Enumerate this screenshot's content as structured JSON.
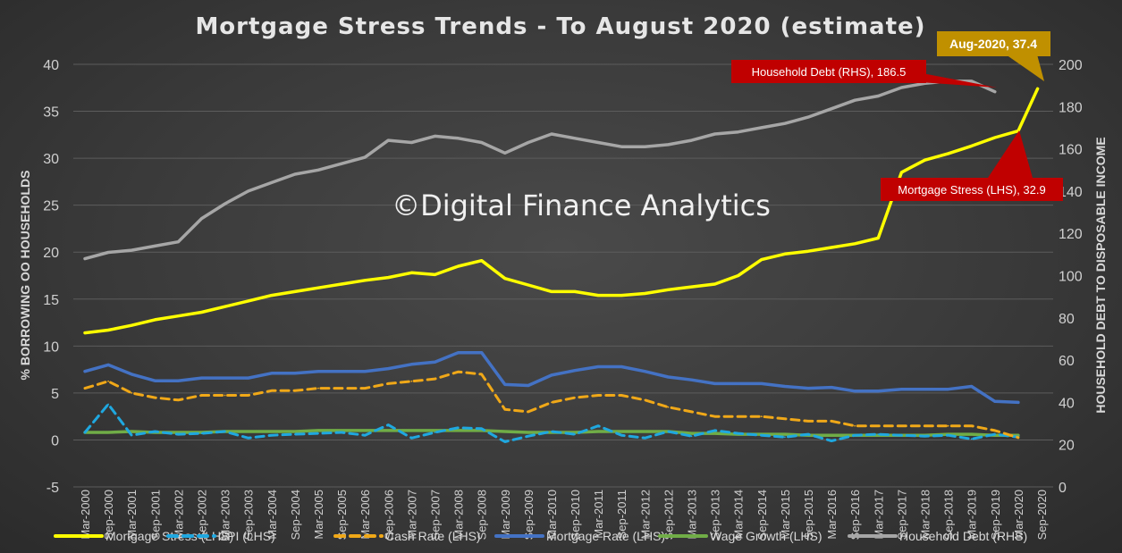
{
  "chart_data": {
    "type": "line",
    "title": "Mortgage Stress Trends - To August 2020 (estimate)",
    "watermark": "©Digital Finance Analytics",
    "ylabel": "% BORROWING OO HOUSEHOLDS",
    "y2label": "HOUSEHOLD DEBT TO DISPOSABLE INCOME",
    "ylim": [
      -5,
      40
    ],
    "y2lim": [
      0,
      200
    ],
    "yticks": [
      "-5",
      "0",
      "5",
      "10",
      "15",
      "20",
      "25",
      "30",
      "35",
      "40"
    ],
    "y2ticks": [
      "0",
      "20",
      "40",
      "60",
      "80",
      "100",
      "120",
      "140",
      "160",
      "180",
      "200"
    ],
    "x_tick_labels": [
      "Mar-2000",
      "Sep-2000",
      "Mar-2001",
      "Sep-2001",
      "Mar-2002",
      "Sep-2002",
      "Mar-2003",
      "Sep-2003",
      "Mar-2004",
      "Sep-2004",
      "Mar-2005",
      "Sep-2005",
      "Mar-2006",
      "Sep-2006",
      "Mar-2007",
      "Sep-2007",
      "Mar-2008",
      "Sep-2008",
      "Mar-2009",
      "Sep-2009",
      "Mar-2010",
      "Sep-2010",
      "Mar-2011",
      "Sep-2011",
      "Mar-2012",
      "Sep-2012",
      "Mar-2013",
      "Sep-2013",
      "Mar-2014",
      "Sep-2014",
      "Mar-2015",
      "Sep-2015",
      "Mar-2016",
      "Sep-2016",
      "Mar-2017",
      "Sep-2017",
      "Mar-2018",
      "Sep-2018",
      "Mar-2019",
      "Sep-2019",
      "Mar-2020",
      "Sep-2020"
    ],
    "grid": true,
    "legend_position": "bottom",
    "series": [
      {
        "name": "Mortgage Stress (LHS)",
        "axis": "left",
        "color": "#ffff00",
        "dash": "solid",
        "x": [
          "Mar-2000",
          "Sep-2000",
          "Mar-2001",
          "Sep-2001",
          "Mar-2002",
          "Sep-2002",
          "Mar-2003",
          "Sep-2003",
          "Mar-2004",
          "Sep-2004",
          "Mar-2005",
          "Sep-2005",
          "Mar-2006",
          "Sep-2006",
          "Mar-2007",
          "Sep-2007",
          "Mar-2008",
          "Sep-2008",
          "Mar-2009",
          "Sep-2009",
          "Mar-2010",
          "Sep-2010",
          "Mar-2011",
          "Sep-2011",
          "Mar-2012",
          "Sep-2012",
          "Mar-2013",
          "Sep-2013",
          "Mar-2014",
          "Sep-2014",
          "Mar-2015",
          "Sep-2015",
          "Mar-2016",
          "Sep-2016",
          "Mar-2017",
          "Sep-2017",
          "Mar-2018",
          "Sep-2018",
          "Mar-2019",
          "Sep-2019",
          "Mar-2020",
          "Aug-2020"
        ],
        "values": [
          11.4,
          11.7,
          12.2,
          12.8,
          13.2,
          13.6,
          14.2,
          14.8,
          15.4,
          15.8,
          16.2,
          16.6,
          17.0,
          17.3,
          17.8,
          17.6,
          18.5,
          19.1,
          17.2,
          16.5,
          15.8,
          15.8,
          15.4,
          15.4,
          15.6,
          16.0,
          16.3,
          16.6,
          17.5,
          19.2,
          19.8,
          20.1,
          20.5,
          20.9,
          21.5,
          28.5,
          29.8,
          30.5,
          31.3,
          32.2,
          32.9,
          37.4
        ]
      },
      {
        "name": "CPI (LHS)",
        "axis": "left",
        "color": "#1fa8e0",
        "dash": "dash",
        "x": [
          "Mar-2000",
          "Sep-2000",
          "Mar-2001",
          "Sep-2001",
          "Mar-2002",
          "Sep-2002",
          "Mar-2003",
          "Sep-2003",
          "Mar-2004",
          "Sep-2004",
          "Mar-2005",
          "Sep-2005",
          "Mar-2006",
          "Sep-2006",
          "Mar-2007",
          "Sep-2007",
          "Mar-2008",
          "Sep-2008",
          "Mar-2009",
          "Sep-2009",
          "Mar-2010",
          "Sep-2010",
          "Mar-2011",
          "Sep-2011",
          "Mar-2012",
          "Sep-2012",
          "Mar-2013",
          "Sep-2013",
          "Mar-2014",
          "Sep-2014",
          "Mar-2015",
          "Sep-2015",
          "Mar-2016",
          "Sep-2016",
          "Mar-2017",
          "Sep-2017",
          "Mar-2018",
          "Sep-2018",
          "Mar-2019",
          "Sep-2019",
          "Mar-2020"
        ],
        "values": [
          0.8,
          3.8,
          0.5,
          0.9,
          0.6,
          0.7,
          0.9,
          0.2,
          0.5,
          0.6,
          0.7,
          0.8,
          0.5,
          1.6,
          0.2,
          0.8,
          1.3,
          1.2,
          -0.2,
          0.4,
          0.9,
          0.6,
          1.5,
          0.5,
          0.2,
          0.9,
          0.4,
          1.0,
          0.7,
          0.5,
          0.3,
          0.6,
          -0.1,
          0.5,
          0.6,
          0.5,
          0.4,
          0.5,
          0.1,
          0.6,
          0.3
        ]
      },
      {
        "name": "Cash Rate (LHS)",
        "axis": "left",
        "color": "#f0a818",
        "dash": "dash",
        "x": [
          "Mar-2000",
          "Sep-2000",
          "Mar-2001",
          "Sep-2001",
          "Mar-2002",
          "Sep-2002",
          "Mar-2003",
          "Sep-2003",
          "Mar-2004",
          "Sep-2004",
          "Mar-2005",
          "Sep-2005",
          "Mar-2006",
          "Sep-2006",
          "Mar-2007",
          "Sep-2007",
          "Mar-2008",
          "Sep-2008",
          "Mar-2009",
          "Sep-2009",
          "Mar-2010",
          "Sep-2010",
          "Mar-2011",
          "Sep-2011",
          "Mar-2012",
          "Sep-2012",
          "Mar-2013",
          "Sep-2013",
          "Mar-2014",
          "Sep-2014",
          "Mar-2015",
          "Sep-2015",
          "Mar-2016",
          "Sep-2016",
          "Mar-2017",
          "Sep-2017",
          "Mar-2018",
          "Sep-2018",
          "Mar-2019",
          "Sep-2019",
          "Mar-2020"
        ],
        "values": [
          5.5,
          6.25,
          5.0,
          4.5,
          4.25,
          4.75,
          4.75,
          4.75,
          5.25,
          5.25,
          5.5,
          5.5,
          5.5,
          6.0,
          6.25,
          6.5,
          7.25,
          7.0,
          3.25,
          3.0,
          4.0,
          4.5,
          4.75,
          4.75,
          4.25,
          3.5,
          3.0,
          2.5,
          2.5,
          2.5,
          2.25,
          2.0,
          2.0,
          1.5,
          1.5,
          1.5,
          1.5,
          1.5,
          1.5,
          1.0,
          0.25
        ]
      },
      {
        "name": "Mortgage Rate (LHS)",
        "axis": "left",
        "color": "#4472c4",
        "dash": "solid",
        "x": [
          "Mar-2000",
          "Sep-2000",
          "Mar-2001",
          "Sep-2001",
          "Mar-2002",
          "Sep-2002",
          "Mar-2003",
          "Sep-2003",
          "Mar-2004",
          "Sep-2004",
          "Mar-2005",
          "Sep-2005",
          "Mar-2006",
          "Sep-2006",
          "Mar-2007",
          "Sep-2007",
          "Mar-2008",
          "Sep-2008",
          "Mar-2009",
          "Sep-2009",
          "Mar-2010",
          "Sep-2010",
          "Mar-2011",
          "Sep-2011",
          "Mar-2012",
          "Sep-2012",
          "Mar-2013",
          "Sep-2013",
          "Mar-2014",
          "Sep-2014",
          "Mar-2015",
          "Sep-2015",
          "Mar-2016",
          "Sep-2016",
          "Mar-2017",
          "Sep-2017",
          "Mar-2018",
          "Sep-2018",
          "Mar-2019",
          "Sep-2019",
          "Mar-2020"
        ],
        "values": [
          7.3,
          8.0,
          7.0,
          6.3,
          6.3,
          6.6,
          6.6,
          6.6,
          7.1,
          7.1,
          7.3,
          7.3,
          7.3,
          7.6,
          8.05,
          8.3,
          9.3,
          9.3,
          5.9,
          5.8,
          6.9,
          7.4,
          7.8,
          7.8,
          7.3,
          6.7,
          6.4,
          6.0,
          6.0,
          6.0,
          5.7,
          5.5,
          5.6,
          5.2,
          5.2,
          5.4,
          5.4,
          5.4,
          5.7,
          4.1,
          4.0
        ]
      },
      {
        "name": "Wage Growth (LHS)",
        "axis": "left",
        "color": "#70ad47",
        "dash": "solid",
        "x": [
          "Mar-2000",
          "Sep-2000",
          "Mar-2001",
          "Sep-2001",
          "Mar-2002",
          "Sep-2002",
          "Mar-2003",
          "Sep-2003",
          "Mar-2004",
          "Sep-2004",
          "Mar-2005",
          "Sep-2005",
          "Mar-2006",
          "Sep-2006",
          "Mar-2007",
          "Sep-2007",
          "Mar-2008",
          "Sep-2008",
          "Mar-2009",
          "Sep-2009",
          "Mar-2010",
          "Sep-2010",
          "Mar-2011",
          "Sep-2011",
          "Mar-2012",
          "Sep-2012",
          "Mar-2013",
          "Sep-2013",
          "Mar-2014",
          "Sep-2014",
          "Mar-2015",
          "Sep-2015",
          "Mar-2016",
          "Sep-2016",
          "Mar-2017",
          "Sep-2017",
          "Mar-2018",
          "Sep-2018",
          "Mar-2019",
          "Sep-2019",
          "Mar-2020"
        ],
        "values": [
          0.8,
          0.8,
          0.9,
          0.8,
          0.8,
          0.8,
          0.9,
          0.9,
          0.9,
          0.9,
          1.0,
          1.0,
          1.0,
          1.0,
          1.0,
          1.0,
          1.0,
          1.0,
          0.9,
          0.8,
          0.8,
          0.8,
          0.9,
          0.9,
          0.9,
          0.9,
          0.7,
          0.7,
          0.6,
          0.6,
          0.6,
          0.5,
          0.5,
          0.5,
          0.5,
          0.5,
          0.5,
          0.6,
          0.6,
          0.5,
          0.5
        ]
      },
      {
        "name": "Household Debt (RHS)",
        "axis": "right",
        "color": "#a6a6a6",
        "dash": "solid",
        "x": [
          "Mar-2000",
          "Sep-2000",
          "Mar-2001",
          "Sep-2001",
          "Mar-2002",
          "Sep-2002",
          "Mar-2003",
          "Sep-2003",
          "Mar-2004",
          "Sep-2004",
          "Mar-2005",
          "Sep-2005",
          "Mar-2006",
          "Sep-2006",
          "Mar-2007",
          "Sep-2007",
          "Mar-2008",
          "Sep-2008",
          "Mar-2009",
          "Sep-2009",
          "Mar-2010",
          "Sep-2010",
          "Mar-2011",
          "Sep-2011",
          "Mar-2012",
          "Sep-2012",
          "Mar-2013",
          "Sep-2013",
          "Mar-2014",
          "Sep-2014",
          "Mar-2015",
          "Sep-2015",
          "Mar-2016",
          "Sep-2016",
          "Mar-2017",
          "Sep-2017",
          "Mar-2018",
          "Sep-2018",
          "Mar-2019",
          "Sep-2019"
        ],
        "values": [
          108,
          111,
          112,
          114,
          116,
          127,
          134,
          140,
          144,
          148,
          150,
          153,
          156,
          164,
          163,
          166,
          165,
          163,
          158,
          163,
          167,
          165,
          163,
          161,
          161,
          162,
          164,
          167,
          168,
          170,
          172,
          175,
          179,
          183,
          185,
          189,
          191,
          192,
          192,
          187
        ]
      }
    ],
    "annotations": [
      {
        "text": "Household Debt (RHS), 186.5",
        "color": "#c00000"
      },
      {
        "text": "Mortgage Stress (LHS), 32.9",
        "color": "#c00000"
      },
      {
        "text": "Aug-2020, 37.4",
        "color": "#c09000"
      }
    ]
  }
}
